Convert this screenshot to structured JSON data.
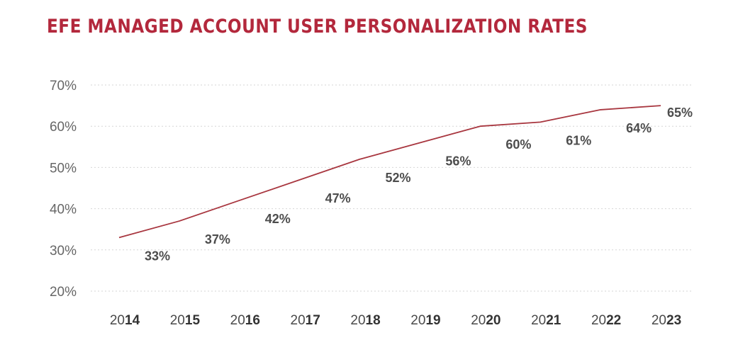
{
  "colors": {
    "accent": "#b3283c",
    "line": "#a8363f",
    "grid": "#d6d6d6"
  },
  "chart_data": {
    "type": "line",
    "title": "EFE MANAGED ACCOUNT USER PERSONALIZATION RATES",
    "xlabel": "",
    "ylabel": "",
    "x": [
      {
        "prefix": "20",
        "suffix": "14"
      },
      {
        "prefix": "20",
        "suffix": "15"
      },
      {
        "prefix": "20",
        "suffix": "16"
      },
      {
        "prefix": "20",
        "suffix": "17"
      },
      {
        "prefix": "20",
        "suffix": "18"
      },
      {
        "prefix": "20",
        "suffix": "19"
      },
      {
        "prefix": "20",
        "suffix": "20"
      },
      {
        "prefix": "20",
        "suffix": "21"
      },
      {
        "prefix": "20",
        "suffix": "22"
      },
      {
        "prefix": "20",
        "suffix": "23"
      }
    ],
    "values": [
      33,
      37,
      42,
      47,
      52,
      56,
      60,
      61,
      64,
      65
    ],
    "data_labels": [
      "33%",
      "37%",
      "42%",
      "47%",
      "52%",
      "56%",
      "60%",
      "61%",
      "64%",
      "65%"
    ],
    "y_ticks": [
      {
        "value": 20,
        "label": "20%"
      },
      {
        "value": 30,
        "label": "30%"
      },
      {
        "value": 40,
        "label": "40%"
      },
      {
        "value": 50,
        "label": "50%"
      },
      {
        "value": 60,
        "label": "60%"
      },
      {
        "value": 70,
        "label": "70%"
      }
    ],
    "ylim": [
      20,
      70
    ],
    "grid": "horizontal-dotted",
    "legend": "none"
  }
}
